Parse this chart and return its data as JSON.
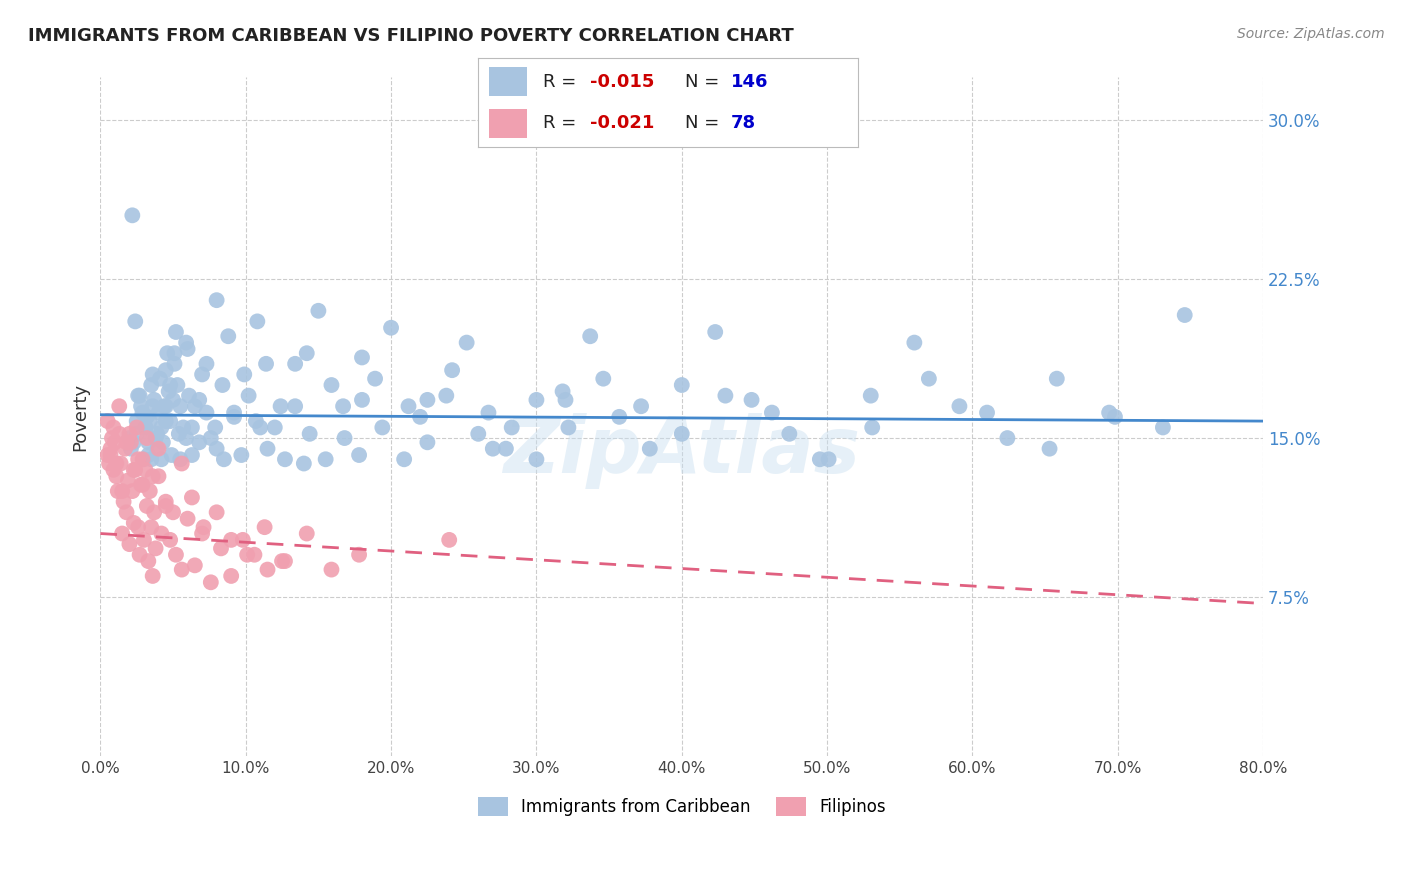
{
  "title": "IMMIGRANTS FROM CARIBBEAN VS FILIPINO POVERTY CORRELATION CHART",
  "source": "Source: ZipAtlas.com",
  "xlabel": "",
  "ylabel": "Poverty",
  "xlim": [
    0.0,
    80.0
  ],
  "ylim": [
    0.0,
    32.0
  ],
  "xticks": [
    0.0,
    10.0,
    20.0,
    30.0,
    40.0,
    50.0,
    60.0,
    70.0,
    80.0
  ],
  "yticks": [
    7.5,
    15.0,
    22.5,
    30.0
  ],
  "grid_color": "#cccccc",
  "background_color": "#ffffff",
  "series": [
    {
      "label": "Immigrants from Caribbean",
      "R": -0.015,
      "N": 146,
      "color": "#a8c4e0",
      "trend_color": "#4488cc",
      "trend_style": "solid",
      "trend_y_start": 16.1,
      "trend_y_end": 15.8
    },
    {
      "label": "Filipinos",
      "R": -0.021,
      "N": 78,
      "color": "#f0a0b0",
      "trend_color": "#e06080",
      "trend_style": "dashed",
      "trend_y_start": 10.5,
      "trend_y_end": 7.2
    }
  ],
  "legend_R_color": "#cc0000",
  "legend_N_color": "#0000cc",
  "blue_scatter_x": [
    2.1,
    2.3,
    2.5,
    2.6,
    2.8,
    3.0,
    3.1,
    3.2,
    3.3,
    3.4,
    3.5,
    3.6,
    3.7,
    3.8,
    3.9,
    4.0,
    4.1,
    4.2,
    4.3,
    4.4,
    4.5,
    4.6,
    4.7,
    4.8,
    4.9,
    5.0,
    5.1,
    5.2,
    5.3,
    5.4,
    5.5,
    5.7,
    5.9,
    6.1,
    6.3,
    6.5,
    6.8,
    7.0,
    7.3,
    7.6,
    8.0,
    8.4,
    8.8,
    9.2,
    9.7,
    10.2,
    10.8,
    11.4,
    12.0,
    12.7,
    13.4,
    14.2,
    15.0,
    15.9,
    16.8,
    17.8,
    18.9,
    20.0,
    21.2,
    22.5,
    23.8,
    25.2,
    26.7,
    28.3,
    30.0,
    31.8,
    33.7,
    35.7,
    37.8,
    40.0,
    42.3,
    44.8,
    47.4,
    50.1,
    53.0,
    56.0,
    59.1,
    62.4,
    65.8,
    69.4,
    73.1,
    2.0,
    2.2,
    2.4,
    2.7,
    2.9,
    3.1,
    3.3,
    3.6,
    3.9,
    4.2,
    4.5,
    4.8,
    5.1,
    5.5,
    5.9,
    6.3,
    6.8,
    7.3,
    7.9,
    8.5,
    9.2,
    9.9,
    10.7,
    11.5,
    12.4,
    13.4,
    14.4,
    15.5,
    16.7,
    18.0,
    19.4,
    20.9,
    22.5,
    24.2,
    26.0,
    27.9,
    30.0,
    32.2,
    34.6,
    37.2,
    40.0,
    43.0,
    46.2,
    49.5,
    53.1,
    57.0,
    61.0,
    65.3,
    69.8,
    74.6,
    2.5,
    3.5,
    4.5,
    6.0,
    8.0,
    11.0,
    14.0,
    18.0,
    22.0,
    27.0,
    32.0,
    38.0,
    44.0,
    51.0,
    58.0,
    66.0
  ],
  "blue_scatter_y": [
    14.5,
    14.8,
    15.2,
    17.0,
    16.5,
    14.0,
    15.5,
    16.0,
    14.2,
    15.8,
    17.5,
    18.0,
    16.8,
    15.0,
    14.5,
    16.2,
    17.8,
    15.5,
    14.8,
    16.5,
    18.2,
    19.0,
    17.2,
    15.8,
    14.2,
    16.8,
    18.5,
    20.0,
    17.5,
    15.2,
    14.0,
    15.5,
    19.5,
    17.0,
    15.5,
    16.5,
    14.8,
    18.0,
    16.2,
    15.0,
    14.5,
    17.5,
    19.8,
    16.0,
    14.2,
    17.0,
    20.5,
    18.5,
    15.5,
    14.0,
    16.5,
    19.0,
    21.0,
    17.5,
    15.0,
    14.2,
    17.8,
    20.2,
    16.5,
    14.8,
    17.0,
    19.5,
    16.2,
    15.5,
    14.0,
    17.2,
    19.8,
    16.0,
    14.5,
    17.5,
    20.0,
    16.8,
    15.2,
    14.0,
    17.0,
    19.5,
    16.5,
    15.0,
    17.8,
    16.2,
    15.5,
    15.0,
    25.5,
    20.5,
    17.0,
    16.2,
    15.5,
    14.8,
    16.5,
    15.2,
    14.0,
    15.8,
    17.5,
    19.0,
    16.5,
    15.0,
    14.2,
    16.8,
    18.5,
    15.5,
    14.0,
    16.2,
    18.0,
    15.8,
    14.5,
    16.5,
    18.5,
    15.2,
    14.0,
    16.5,
    18.8,
    15.5,
    14.0,
    16.8,
    18.2,
    15.2,
    14.5,
    16.8,
    15.5,
    17.8,
    16.5,
    15.2,
    17.0,
    16.2,
    14.0,
    15.5,
    17.8,
    16.2,
    14.5,
    16.0,
    20.8,
    15.8,
    14.0,
    16.5,
    19.2,
    21.5,
    15.5,
    13.8,
    16.8,
    16.0,
    14.5,
    16.8
  ],
  "pink_scatter_x": [
    0.5,
    0.6,
    0.7,
    0.8,
    0.9,
    1.0,
    1.1,
    1.2,
    1.3,
    1.4,
    1.5,
    1.6,
    1.7,
    1.8,
    1.9,
    2.0,
    2.1,
    2.2,
    2.3,
    2.4,
    2.5,
    2.6,
    2.7,
    2.8,
    2.9,
    3.0,
    3.1,
    3.2,
    3.3,
    3.4,
    3.5,
    3.6,
    3.7,
    3.8,
    4.0,
    4.2,
    4.5,
    4.8,
    5.2,
    5.6,
    6.0,
    6.5,
    7.0,
    7.6,
    8.3,
    9.0,
    9.8,
    10.6,
    11.5,
    12.5,
    0.5,
    0.7,
    0.9,
    1.1,
    1.3,
    1.5,
    1.8,
    2.0,
    2.3,
    2.6,
    2.9,
    3.2,
    3.6,
    4.0,
    4.5,
    5.0,
    5.6,
    6.3,
    7.1,
    8.0,
    9.0,
    10.1,
    11.3,
    12.7,
    14.2,
    15.9,
    17.8,
    24.0
  ],
  "pink_scatter_y": [
    14.2,
    13.8,
    14.5,
    15.0,
    13.5,
    14.8,
    13.2,
    12.5,
    15.2,
    13.8,
    10.5,
    12.0,
    14.5,
    11.5,
    13.0,
    10.0,
    14.8,
    12.5,
    11.0,
    13.5,
    15.5,
    10.8,
    9.5,
    12.8,
    14.0,
    10.2,
    13.5,
    11.8,
    9.2,
    12.5,
    10.8,
    8.5,
    11.5,
    9.8,
    13.2,
    10.5,
    11.8,
    10.2,
    9.5,
    8.8,
    11.2,
    9.0,
    10.5,
    8.2,
    9.8,
    8.5,
    10.2,
    9.5,
    8.8,
    9.2,
    15.8,
    14.2,
    15.5,
    13.8,
    16.5,
    12.5,
    14.8,
    15.2,
    13.5,
    14.0,
    12.8,
    15.0,
    13.2,
    14.5,
    12.0,
    11.5,
    13.8,
    12.2,
    10.8,
    11.5,
    10.2,
    9.5,
    10.8,
    9.2,
    10.5,
    8.8,
    9.5,
    10.2
  ]
}
